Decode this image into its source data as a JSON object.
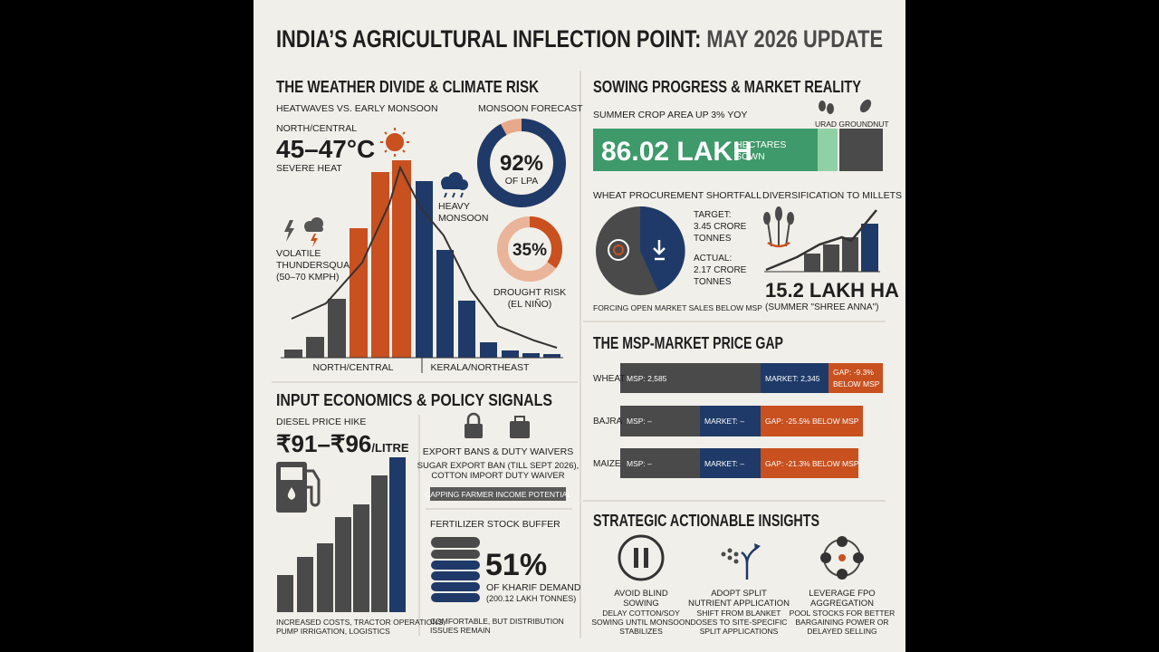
{
  "header": {
    "title": "INDIA’S AGRICULTURAL INFLECTION POINT:",
    "highlight": "MAY 2026 UPDATE"
  },
  "weather": {
    "title": "THE WEATHER DIVIDE & CLIMATE RISK",
    "subtitle": "HEATWAVES VS. EARLY MONSOON",
    "region": "NORTH/CENTRAL",
    "temperature": "45–47°C",
    "heat_label": "SEVERE HEAT",
    "monsoon_forecast": {
      "title": "MONSOON FORECAST",
      "value": 92,
      "label": "92%",
      "caption": "OF LPA"
    },
    "heavy_monsoon": [
      "HEAVY",
      "MONSOON"
    ],
    "squalls": [
      "VOLATILE",
      "THUNDERSQUALLS",
      "(50–70 KMPH)"
    ],
    "drought": {
      "value": 35,
      "label": "35%",
      "caption": [
        "DROUGHT RISK",
        "(EL NIÑO)"
      ]
    },
    "axis_labels": [
      "NORTH/CENTRAL",
      "KERALA/NORTHEAST"
    ]
  },
  "inputs": {
    "title": "INPUT ECONOMICS & POLICY SIGNALS",
    "diesel": {
      "title": "DIESEL PRICE HIKE",
      "price": "₹91–₹96",
      "unit": "/LITRE",
      "note": [
        "INCREASED COSTS, TRACTOR OPERATIONS,",
        "PUMP IRRIGATION, LOGISTICS"
      ]
    },
    "export": {
      "title": "EXPORT BANS & DUTY WAIVERS",
      "lines": [
        "SUGAR EXPORT BAN (TILL SEPT 2026),",
        "COTTON IMPORT DUTY WAIVER"
      ],
      "tag": "CAPPING FARMER INCOME POTENTIAL"
    },
    "fertilizer": {
      "title": "FERTILIZER STOCK BUFFER",
      "value": "51%",
      "caption": "OF KHARIF DEMAND",
      "detail": "(200.12 LAKH TONNES)",
      "note": [
        "COMFORTABLE, BUT DISTRIBUTION",
        "ISSUES REMAIN"
      ]
    }
  },
  "sowing": {
    "title": "SOWING PROGRESS & MARKET REALITY",
    "subtitle": "SUMMER CROP AREA UP 3% YOY",
    "crops": [
      "URAD",
      "GROUNDNUT"
    ],
    "area": "86.02 LAKH",
    "area_unit": [
      "HECTARES",
      "SOWN"
    ],
    "wheat": {
      "title": "WHEAT PROCUREMENT SHORTFALL",
      "target": [
        "TARGET:",
        "3.45 CRORE",
        "TONNES"
      ],
      "actual": [
        "ACTUAL:",
        "2.17 CRORE",
        "TONNES"
      ],
      "note": "FORCING OPEN MARKET SALES BELOW MSP"
    },
    "millets": {
      "title": "DIVERSIFICATION TO MILLETS",
      "value": "15.2 LAKH HA",
      "caption": "(SUMMER \"SHREE ANNA\")"
    }
  },
  "msp_gap": {
    "title": "THE MSP-MARKET PRICE GAP",
    "rows": [
      {
        "crop": "WHEAT",
        "msp": "MSP: 2,585",
        "market": "MARKET: 2,345",
        "gap": [
          "GAP: -9.3%",
          "BELOW MSP"
        ]
      },
      {
        "crop": "BAJRA",
        "msp": "MSP: –",
        "market": "MARKET: –",
        "gap": [
          "GAP: -25.5% BELOW MSP"
        ]
      },
      {
        "crop": "MAIZE",
        "msp": "MSP: –",
        "market": "MARKET: –",
        "gap": [
          "GAP: -21.3% BELOW MSP"
        ]
      }
    ]
  },
  "insights": {
    "title": "STRATEGIC ACTIONABLE INSIGHTS",
    "items": [
      {
        "title": [
          "AVOID BLIND",
          "SOWING"
        ],
        "text": [
          "DELAY COTTON/SOY",
          "SOWING UNTIL MONSOON",
          "STABILIZES"
        ]
      },
      {
        "title": [
          "ADOPT SPLIT",
          "NUTRIENT APPLICATION"
        ],
        "text": [
          "SHIFT FROM BLANKET",
          "DOSES TO SITE-SPECIFIC",
          "SPLIT APPLICATIONS"
        ]
      },
      {
        "title": [
          "LEVERAGE FPO",
          "AGGREGATION"
        ],
        "text": [
          "POOL STOCKS FOR BETTER",
          "BARGAINING POWER OR",
          "DELAYED SELLING"
        ]
      }
    ]
  }
}
